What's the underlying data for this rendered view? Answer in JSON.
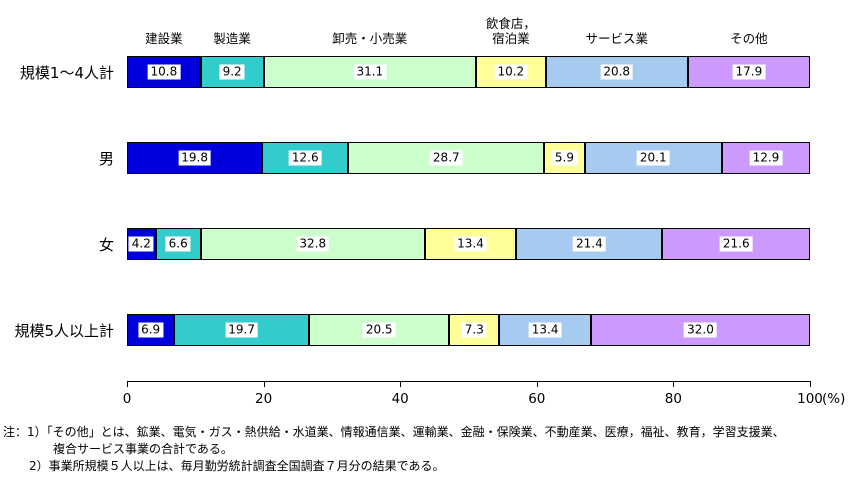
{
  "chart_data": {
    "type": "bar",
    "variant": "horizontal-100pct-stacked",
    "title": "",
    "categories": [
      "規模1〜4人計",
      "男",
      "女",
      "規模5人以上計"
    ],
    "series": [
      {
        "name": "建設業",
        "legend": "建設業",
        "color": "#0000DD",
        "values": [
          10.8,
          19.8,
          4.2,
          6.9
        ]
      },
      {
        "name": "製造業",
        "legend": "製造業",
        "color": "#33CCCC",
        "values": [
          9.2,
          12.6,
          6.6,
          19.7
        ]
      },
      {
        "name": "卸売・小売業",
        "legend": "卸売・小売業",
        "color": "#CCFFCC",
        "values": [
          31.1,
          28.7,
          32.8,
          20.5
        ]
      },
      {
        "name": "飲食店，宿泊業",
        "legend": "飲食店，\n宿泊業",
        "color": "#FFFF99",
        "values": [
          10.2,
          5.9,
          13.4,
          7.3
        ]
      },
      {
        "name": "サービス業",
        "legend": "サービス業",
        "color": "#A6CAF0",
        "values": [
          20.8,
          20.1,
          21.4,
          13.4
        ]
      },
      {
        "name": "その他",
        "legend": "その他",
        "color": "#CC99FF",
        "values": [
          17.9,
          12.9,
          21.6,
          32.0
        ]
      }
    ],
    "x_ticks": [
      0,
      20,
      40,
      60,
      80,
      100
    ],
    "x_unit": "(%)",
    "xlim": [
      0,
      100
    ],
    "value_label_decimals": 1,
    "legend_position": "top",
    "grid": false
  },
  "notes": {
    "lines": [
      "注：1）「その他」とは、鉱業、電気・ガス・熱供給・水道業、情報通信業、運輸業、金融・保険業、不動産業、医療，福祉、教育，学習支援業、",
      "複合サービス事業の合計である。",
      "2）事業所規模５人以上は、毎月勤労統計調査全国調査７月分の結果である。"
    ]
  }
}
